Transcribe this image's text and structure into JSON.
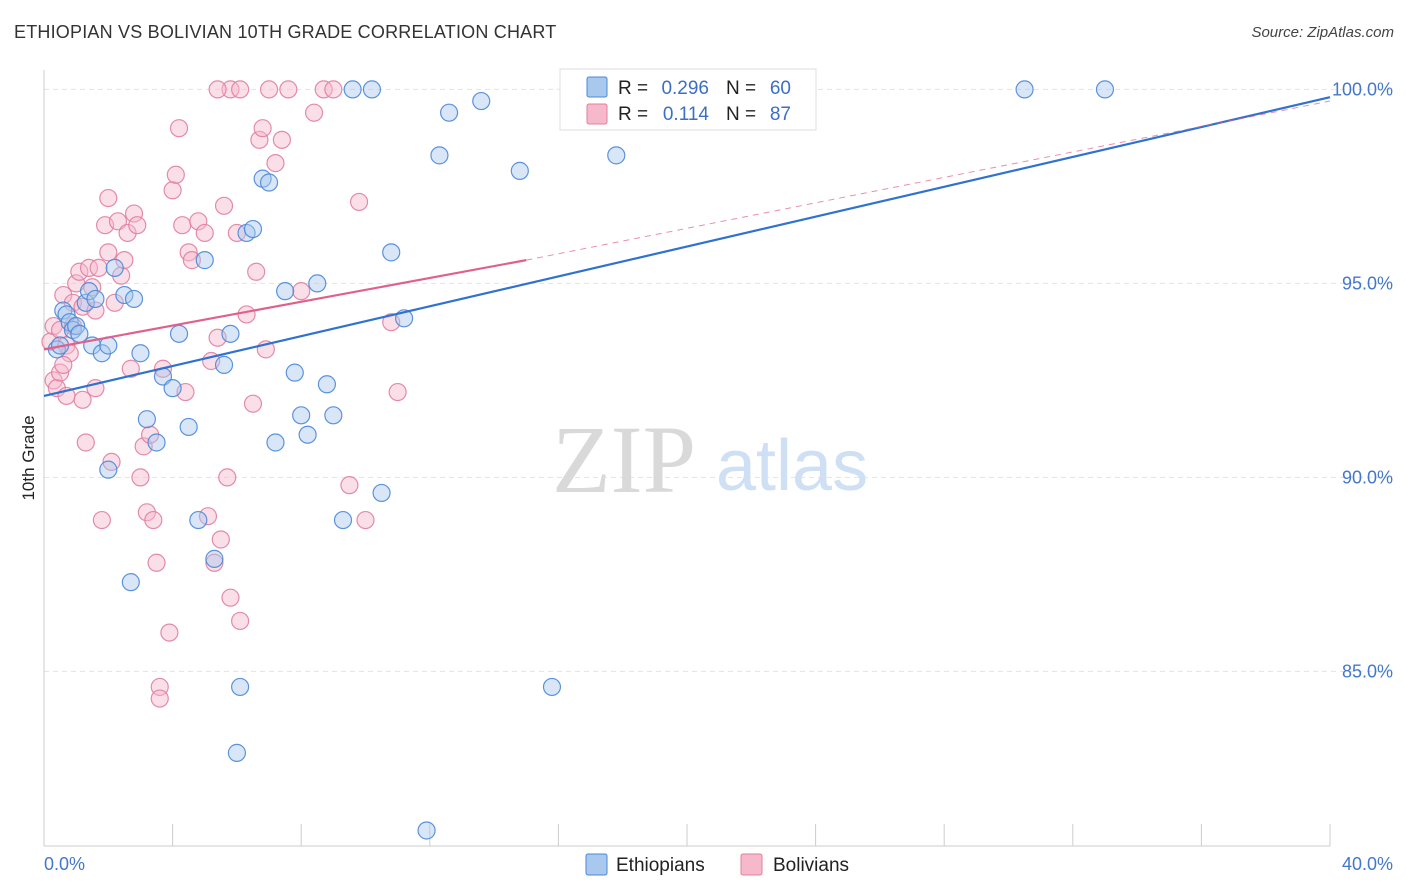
{
  "chart_data": {
    "type": "scatter",
    "title": "ETHIOPIAN VS BOLIVIAN 10TH GRADE CORRELATION CHART",
    "source": "Source: ZipAtlas.com",
    "xlabel": "",
    "ylabel": "10th Grade",
    "xlim": [
      0,
      40
    ],
    "ylim": [
      80.5,
      100.5
    ],
    "x_tick_labels": [
      "0.0%",
      "40.0%"
    ],
    "y_ticks": [
      85,
      90,
      95,
      100
    ],
    "y_tick_labels": [
      "85.0%",
      "90.0%",
      "95.0%",
      "100.0%"
    ],
    "grid": true,
    "watermark": {
      "left": "ZIP",
      "right": "atlas"
    },
    "legend_stats": [
      {
        "r_label": "R =",
        "r_value": "0.296",
        "n_label": "N =",
        "n_value": "60"
      },
      {
        "r_label": "R =",
        "r_value": "0.114",
        "n_label": "N =",
        "n_value": "87"
      }
    ],
    "colors": {
      "ethiopians_fill": "#a9c8ee",
      "ethiopians_stroke": "#4a88d8",
      "ethiopians_line": "#2f72d0",
      "bolivians_fill": "#f6b8cb",
      "bolivians_stroke": "#e07fa0",
      "bolivians_line": "#e0608c",
      "tick_text": "#4477cc",
      "grid": "#e3e3e3"
    },
    "series": [
      {
        "name": "Ethiopians",
        "trend": {
          "x0": 0,
          "y0": 92.1,
          "x1": 40,
          "y1": 99.8,
          "dashed_from": null
        },
        "points": [
          [
            0.4,
            93.3
          ],
          [
            0.5,
            93.4
          ],
          [
            0.6,
            94.3
          ],
          [
            0.7,
            94.2
          ],
          [
            0.8,
            94.0
          ],
          [
            0.9,
            93.8
          ],
          [
            1.0,
            93.9
          ],
          [
            1.1,
            93.7
          ],
          [
            1.3,
            94.5
          ],
          [
            1.4,
            94.8
          ],
          [
            1.5,
            93.4
          ],
          [
            1.6,
            94.6
          ],
          [
            1.8,
            93.2
          ],
          [
            2.0,
            93.4
          ],
          [
            2.2,
            95.4
          ],
          [
            2.5,
            94.7
          ],
          [
            2.8,
            94.6
          ],
          [
            3.0,
            93.2
          ],
          [
            3.2,
            91.5
          ],
          [
            3.5,
            90.9
          ],
          [
            3.7,
            92.6
          ],
          [
            4.0,
            92.3
          ],
          [
            4.2,
            93.7
          ],
          [
            4.5,
            91.3
          ],
          [
            4.8,
            88.9
          ],
          [
            5.0,
            95.6
          ],
          [
            5.3,
            87.9
          ],
          [
            5.6,
            92.9
          ],
          [
            5.8,
            93.7
          ],
          [
            6.0,
            82.9
          ],
          [
            6.1,
            84.6
          ],
          [
            6.3,
            96.3
          ],
          [
            6.5,
            96.4
          ],
          [
            6.8,
            97.7
          ],
          [
            7.0,
            97.6
          ],
          [
            7.2,
            90.9
          ],
          [
            7.5,
            94.8
          ],
          [
            7.8,
            92.7
          ],
          [
            8.0,
            91.6
          ],
          [
            8.2,
            91.1
          ],
          [
            8.5,
            95.0
          ],
          [
            8.8,
            92.4
          ],
          [
            9.0,
            91.6
          ],
          [
            9.3,
            88.9
          ],
          [
            9.6,
            100.0
          ],
          [
            10.2,
            100.0
          ],
          [
            10.5,
            89.6
          ],
          [
            10.8,
            95.8
          ],
          [
            11.2,
            94.1
          ],
          [
            11.9,
            80.9
          ],
          [
            12.3,
            98.3
          ],
          [
            12.6,
            99.4
          ],
          [
            13.6,
            99.7
          ],
          [
            14.8,
            97.9
          ],
          [
            15.8,
            84.6
          ],
          [
            17.8,
            98.3
          ],
          [
            30.5,
            100.0
          ],
          [
            33.0,
            100.0
          ],
          [
            2.7,
            87.3
          ],
          [
            2.0,
            90.2
          ]
        ]
      },
      {
        "name": "Bolivians",
        "trend": {
          "x0": 0,
          "y0": 93.3,
          "x1": 15,
          "y1": 95.6,
          "dashed_from": 15,
          "dashed_x1": 40,
          "dashed_y1": 99.7
        },
        "points": [
          [
            0.2,
            93.5
          ],
          [
            0.3,
            92.5
          ],
          [
            0.3,
            93.9
          ],
          [
            0.4,
            92.3
          ],
          [
            0.5,
            93.8
          ],
          [
            0.5,
            92.7
          ],
          [
            0.6,
            94.7
          ],
          [
            0.7,
            92.1
          ],
          [
            0.7,
            93.4
          ],
          [
            0.8,
            93.2
          ],
          [
            0.9,
            94.5
          ],
          [
            1.0,
            95.0
          ],
          [
            1.1,
            95.3
          ],
          [
            1.2,
            92.0
          ],
          [
            1.2,
            94.4
          ],
          [
            1.3,
            90.9
          ],
          [
            1.4,
            95.4
          ],
          [
            1.5,
            94.9
          ],
          [
            1.6,
            92.3
          ],
          [
            1.7,
            95.4
          ],
          [
            1.8,
            88.9
          ],
          [
            1.9,
            96.5
          ],
          [
            2.0,
            97.2
          ],
          [
            2.1,
            90.4
          ],
          [
            2.2,
            94.5
          ],
          [
            2.3,
            96.6
          ],
          [
            2.4,
            95.2
          ],
          [
            2.5,
            95.6
          ],
          [
            2.6,
            96.3
          ],
          [
            2.7,
            92.8
          ],
          [
            2.8,
            96.8
          ],
          [
            2.9,
            96.5
          ],
          [
            3.0,
            90.0
          ],
          [
            3.1,
            90.8
          ],
          [
            3.2,
            89.1
          ],
          [
            3.3,
            91.1
          ],
          [
            3.4,
            88.9
          ],
          [
            3.5,
            87.8
          ],
          [
            3.6,
            84.6
          ],
          [
            3.6,
            84.3
          ],
          [
            3.7,
            92.8
          ],
          [
            3.9,
            86.0
          ],
          [
            4.0,
            97.4
          ],
          [
            4.1,
            97.8
          ],
          [
            4.2,
            99.0
          ],
          [
            4.3,
            96.5
          ],
          [
            4.4,
            92.2
          ],
          [
            4.5,
            95.8
          ],
          [
            4.6,
            95.6
          ],
          [
            4.8,
            96.6
          ],
          [
            5.0,
            96.3
          ],
          [
            5.1,
            89.0
          ],
          [
            5.2,
            93.0
          ],
          [
            5.3,
            87.8
          ],
          [
            5.4,
            93.6
          ],
          [
            5.5,
            88.4
          ],
          [
            5.6,
            97.0
          ],
          [
            5.7,
            90.0
          ],
          [
            5.8,
            86.9
          ],
          [
            6.0,
            96.3
          ],
          [
            6.1,
            86.3
          ],
          [
            6.3,
            94.2
          ],
          [
            6.5,
            91.9
          ],
          [
            6.6,
            95.3
          ],
          [
            6.7,
            98.7
          ],
          [
            6.8,
            99.0
          ],
          [
            6.9,
            93.3
          ],
          [
            7.0,
            100.0
          ],
          [
            7.2,
            98.1
          ],
          [
            7.4,
            98.7
          ],
          [
            7.6,
            100.0
          ],
          [
            8.0,
            94.8
          ],
          [
            8.4,
            99.4
          ],
          [
            8.7,
            100.0
          ],
          [
            9.0,
            100.0
          ],
          [
            9.5,
            89.8
          ],
          [
            9.8,
            97.1
          ],
          [
            10.0,
            88.9
          ],
          [
            10.8,
            94.0
          ],
          [
            11.0,
            92.2
          ],
          [
            1.6,
            94.3
          ],
          [
            2.0,
            95.8
          ],
          [
            0.9,
            93.9
          ],
          [
            0.6,
            92.9
          ],
          [
            5.8,
            100.0
          ],
          [
            6.1,
            100.0
          ],
          [
            5.4,
            100.0
          ]
        ]
      }
    ],
    "legend": {
      "position": "top-center",
      "bottom_entries": [
        "Ethiopians",
        "Bolivians"
      ]
    }
  }
}
